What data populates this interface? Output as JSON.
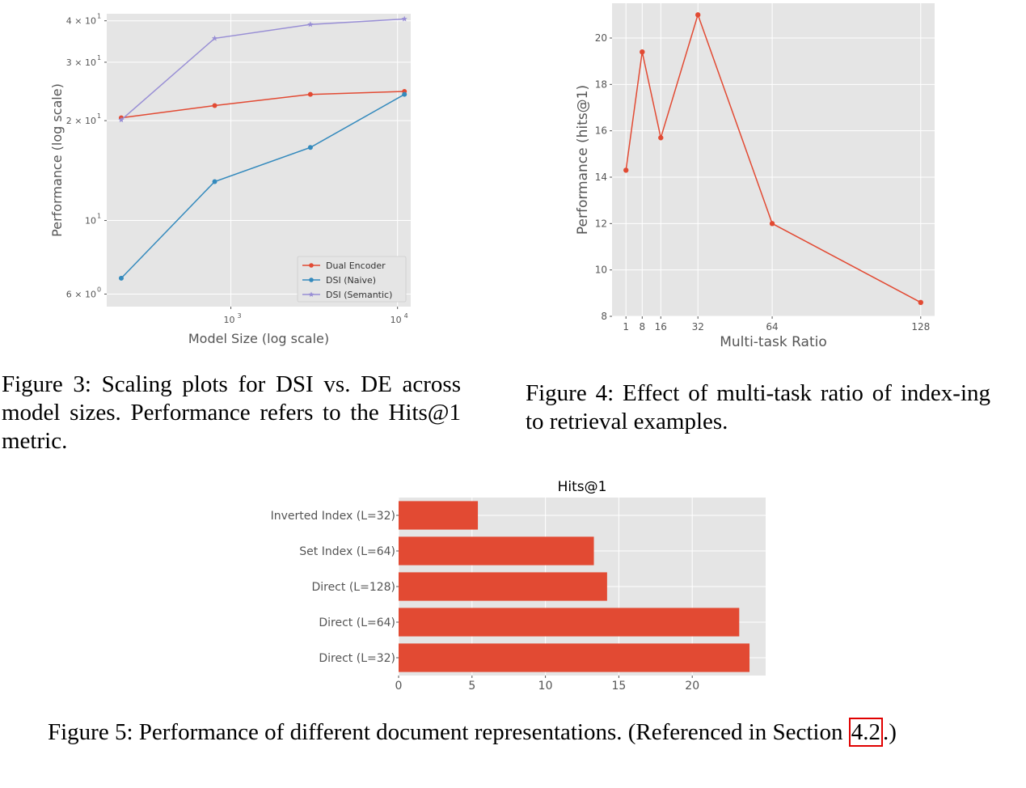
{
  "colors": {
    "dual_encoder": "#e24a33",
    "dsi_naive": "#348abd",
    "dsi_semantic": "#988ed5",
    "plot_bg": "#e5e5e5",
    "grid": "#ffffff",
    "tick_text": "#555555",
    "bar": "#e24a33",
    "ref_box": "#e00000"
  },
  "figure3": {
    "caption": "Figure 3:  Scaling plots for DSI vs. DE across model sizes.  Performance refers to the Hits@1 metric.",
    "chart_data": {
      "type": "line",
      "xlabel": "Model Size (log scale)",
      "ylabel": "Performance (log scale)",
      "x_scale": "log",
      "y_scale": "log",
      "xlim": [
        180,
        12000
      ],
      "ylim": [
        5.5,
        42
      ],
      "x_ticks": [
        {
          "value": 1000,
          "base": "10",
          "exp": "3"
        },
        {
          "value": 10000,
          "base": "10",
          "exp": "4"
        }
      ],
      "y_ticks": [
        {
          "value": 6,
          "mant": "6 × 10",
          "exp": "0"
        },
        {
          "value": 10,
          "mant": "10",
          "exp": "1"
        },
        {
          "value": 20,
          "mant": "2 × 10",
          "exp": "1"
        },
        {
          "value": 30,
          "mant": "3 × 10",
          "exp": "1"
        },
        {
          "value": 40,
          "mant": "4 × 10",
          "exp": "1"
        }
      ],
      "x": [
        220,
        800,
        3000,
        11000
      ],
      "series": [
        {
          "name": "Dual Encoder",
          "values": [
            20.4,
            22.2,
            24.0,
            24.5
          ],
          "marker": "circle",
          "color": "#e24a33"
        },
        {
          "name": "DSI (Naive)",
          "values": [
            6.7,
            13.1,
            16.6,
            24.0
          ],
          "marker": "circle",
          "color": "#348abd"
        },
        {
          "name": "DSI (Semantic)",
          "values": [
            20.1,
            35.4,
            39.0,
            40.5
          ],
          "marker": "star",
          "color": "#988ed5"
        }
      ],
      "legend_position": "lower-right",
      "grid": true
    }
  },
  "figure4": {
    "caption": "Figure 4: Effect of multi-task ratio of index-ing to retrieval examples.",
    "chart_data": {
      "type": "line",
      "xlabel": "Multi-task Ratio",
      "ylabel": "Performance (hits@1)",
      "x": [
        1,
        8,
        16,
        32,
        64,
        128
      ],
      "values": [
        14.3,
        19.4,
        15.7,
        21.0,
        12.0,
        8.6
      ],
      "xlim": [
        -5,
        134
      ],
      "ylim": [
        8,
        21.5
      ],
      "x_ticks": [
        1,
        8,
        16,
        32,
        64,
        128
      ],
      "y_ticks": [
        8,
        10,
        12,
        14,
        16,
        18,
        20
      ],
      "marker": "circle",
      "color": "#e24a33",
      "grid": true
    }
  },
  "figure5": {
    "caption_main": "Figure 5: Performance of different document representations. (Referenced in Section ",
    "caption_ref": "4.2",
    "caption_end": ".)",
    "chart_data": {
      "type": "bar",
      "orientation": "horizontal",
      "title": "Hits@1",
      "categories": [
        "Direct (L=32)",
        "Direct (L=64)",
        "Direct (L=128)",
        "Set Index (L=64)",
        "Inverted Index (L=32)"
      ],
      "values": [
        23.9,
        23.2,
        14.2,
        13.3,
        5.4
      ],
      "xlim": [
        0,
        25
      ],
      "x_ticks": [
        0,
        5,
        10,
        15,
        20
      ],
      "color": "#e24a33",
      "grid": true
    }
  }
}
